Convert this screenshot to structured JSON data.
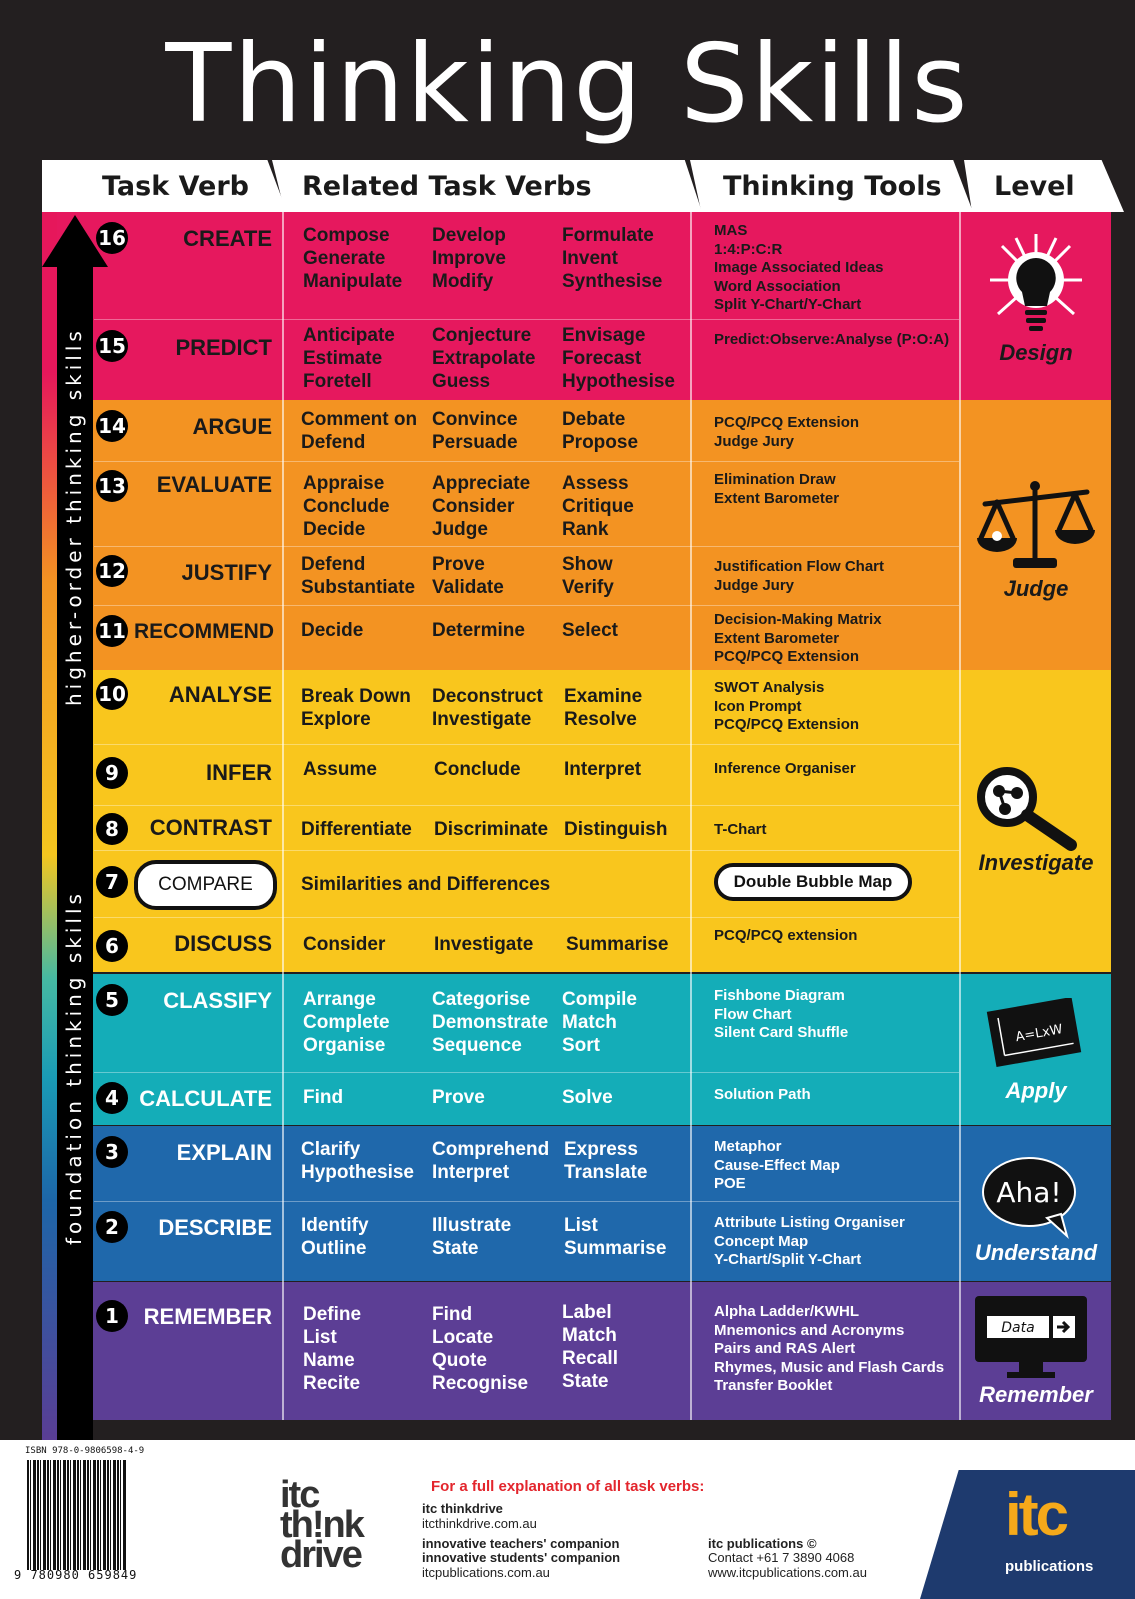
{
  "title": "Thinking Skills",
  "headers": {
    "task_verb": "Task Verb",
    "related": "Related Task Verbs",
    "tools": "Thinking Tools",
    "level": "Level"
  },
  "side_labels": {
    "higher": "higher-order thinking skills",
    "foundation": "foundation thinking skills"
  },
  "colors": {
    "design": "#e6185e",
    "judge": "#f39322",
    "investigate": "#f9c61d",
    "apply": "#14adb8",
    "understand": "#1f68ab",
    "remember": "#5c3e95"
  },
  "rows": [
    {
      "num": "16",
      "verb": "CREATE",
      "c1": "Compose\nGenerate\nManipulate",
      "c2": "Develop\nImprove\nModify",
      "c3": "Formulate\nInvent\nSynthesise",
      "tools": "MAS\n1:4:P:C:R\nImage Associated Ideas\nWord Association\nSplit Y-Chart/Y-Chart"
    },
    {
      "num": "15",
      "verb": "PREDICT",
      "c1": "Anticipate\nEstimate\nForetell",
      "c2": "Conjecture\nExtrapolate\nGuess",
      "c3": "Envisage\nForecast\nHypothesise",
      "tools": "Predict:Observe:Analyse (P:O:A)"
    },
    {
      "num": "14",
      "verb": "ARGUE",
      "c1": "Comment on\nDefend",
      "c2": "Convince\nPersuade",
      "c3": "Debate\nPropose",
      "tools": "PCQ/PCQ Extension\nJudge Jury"
    },
    {
      "num": "13",
      "verb": "EVALUATE",
      "c1": "Appraise\nConclude\nDecide",
      "c2": "Appreciate\nConsider\nJudge",
      "c3": "Assess\nCritique\nRank",
      "tools": "Elimination Draw\nExtent Barometer"
    },
    {
      "num": "12",
      "verb": "JUSTIFY",
      "c1": "Defend\nSubstantiate",
      "c2": "Prove\nValidate",
      "c3": "Show\nVerify",
      "tools": "Justification Flow Chart\nJudge Jury"
    },
    {
      "num": "11",
      "verb": "RECOMMEND",
      "c1": "Decide",
      "c2": "Determine",
      "c3": "Select",
      "tools": "Decision-Making Matrix\nExtent Barometer\nPCQ/PCQ Extension"
    },
    {
      "num": "10",
      "verb": "ANALYSE",
      "c1": "Break Down\nExplore",
      "c2": "Deconstruct\nInvestigate",
      "c3": "Examine\nResolve",
      "tools": "SWOT Analysis\nIcon Prompt\nPCQ/PCQ Extension"
    },
    {
      "num": "9",
      "verb": "INFER",
      "c1": "Assume",
      "c2": "Conclude",
      "c3": "Interpret",
      "tools": "Inference Organiser"
    },
    {
      "num": "8",
      "verb": "CONTRAST",
      "c1": "Differentiate",
      "c2": "Discriminate",
      "c3": "Distinguish",
      "tools": "T-Chart"
    },
    {
      "num": "7",
      "verb": "COMPARE",
      "c1": "Similarities and Differences",
      "c2": "",
      "c3": "",
      "tools": "Double Bubble Map"
    },
    {
      "num": "6",
      "verb": "DISCUSS",
      "c1": "Consider",
      "c2": "Investigate",
      "c3": "Summarise",
      "tools": "PCQ/PCQ extension"
    },
    {
      "num": "5",
      "verb": "CLASSIFY",
      "c1": "Arrange\nComplete\nOrganise",
      "c2": "Categorise\nDemonstrate\nSequence",
      "c3": "Compile\nMatch\nSort",
      "tools": "Fishbone Diagram\nFlow Chart\nSilent Card Shuffle"
    },
    {
      "num": "4",
      "verb": "CALCULATE",
      "c1": "Find",
      "c2": "Prove",
      "c3": "Solve",
      "tools": "Solution Path"
    },
    {
      "num": "3",
      "verb": "EXPLAIN",
      "c1": "Clarify\nHypothesise",
      "c2": "Comprehend\nInterpret",
      "c3": "Express\nTranslate",
      "tools": "Metaphor\nCause-Effect Map\nPOE"
    },
    {
      "num": "2",
      "verb": "DESCRIBE",
      "c1": "Identify\nOutline",
      "c2": "Illustrate\nState",
      "c3": "List\nSummarise",
      "tools": "Attribute Listing Organiser\nConcept Map\nY-Chart/Split Y-Chart"
    },
    {
      "num": "1",
      "verb": "REMEMBER",
      "c1": "Define\nList\nName\nRecite",
      "c2": "Find\nLocate\nQuote\nRecognise",
      "c3": "Label\nMatch\nRecall\nState",
      "tools": "Alpha Ladder/KWHL\nMnemonics and Acronyms\nPairs and RAS Alert\nRhymes, Music and Flash Cards\nTransfer Booklet"
    }
  ],
  "levels": {
    "design": "Design",
    "judge": "Judge",
    "investigate": "Investigate",
    "apply": "Apply",
    "apply_formula": "A=LxW",
    "understand": "Understand",
    "aha": "Aha!",
    "remember": "Remember",
    "data": "Data"
  },
  "footer": {
    "isbn": "ISBN 978-0-9806598-4-9",
    "barcode_number": "9 780980 659849",
    "think_logo": "itc\nth!nk\ndrive",
    "full_expl": "For a full explanation of all task verbs:",
    "thinkdrive_name": "itc thinkdrive",
    "thinkdrive_url": "itcthinkdrive.com.au",
    "companion1": "innovative teachers' companion",
    "companion2": "innovative students' companion",
    "companion_url": "itcpublications.com.au",
    "pub_name": "itc publications ©",
    "pub_contact": "Contact +61 7 3890 4068",
    "pub_url": "www.itcpublications.com.au",
    "itc_logo": "itc",
    "itc_pub": "publications"
  }
}
